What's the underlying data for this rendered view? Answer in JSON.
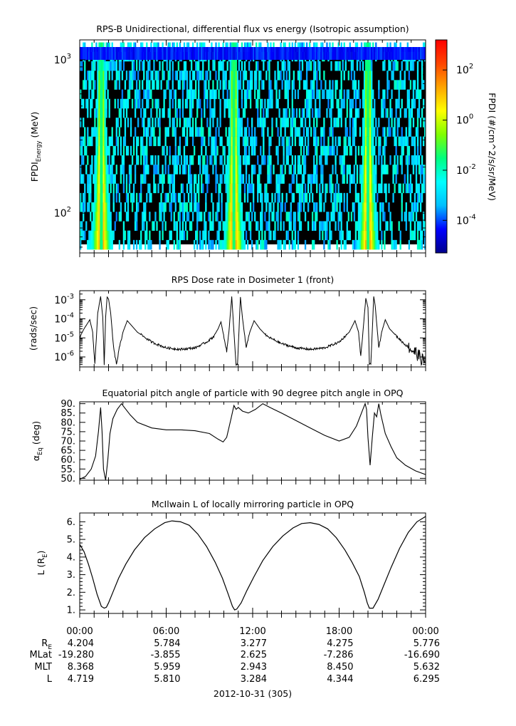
{
  "colors": {
    "axis": "#000000",
    "background_fill": "#000000",
    "colormap": [
      "#00008b",
      "#0000ff",
      "#00bfff",
      "#00ffff",
      "#00ff7f",
      "#7fff00",
      "#ffff00",
      "#ffa500",
      "#ff4500",
      "#ff0000"
    ]
  },
  "chart_data": [
    {
      "type": "heatmap",
      "title": "RPS-B  Unidirectional, differential flux vs energy (Isotropic assumption)",
      "ylabel_main": "FPDI",
      "ylabel_sub": "Energy",
      "ylabel_unit": " (MeV)",
      "yscale": "log",
      "ylim": [
        55,
        1350
      ],
      "y_ticks": [
        {
          "value": 100,
          "base": "10",
          "exp": "2"
        },
        {
          "value": 1000,
          "base": "10",
          "exp": "3"
        }
      ],
      "xlim_hours": [
        0,
        24
      ],
      "colorbar": {
        "label": "FPDI (#/cm^2/s/sr/MeV)",
        "scale": "log",
        "range_exp": [
          -5.3,
          3.2
        ],
        "ticks": [
          {
            "exp": "2",
            "base": "10"
          },
          {
            "exp": "0",
            "base": "10"
          },
          {
            "exp": "-2",
            "base": "10"
          },
          {
            "exp": "-4",
            "base": "10"
          }
        ]
      },
      "belt_passes_hours": [
        1.5,
        10.7,
        20.0
      ]
    },
    {
      "type": "line",
      "title": "RPS  Dose rate in Dosimeter 1 (front)",
      "ylabel": "(rads/sec)",
      "yscale": "log",
      "ylim": [
        3e-07,
        0.003
      ],
      "y_ticks": [
        {
          "value": 1e-06,
          "base": "10",
          "exp": "-6"
        },
        {
          "value": 1e-05,
          "base": "10",
          "exp": "-5"
        },
        {
          "value": 0.0001,
          "base": "10",
          "exp": "-4"
        },
        {
          "value": 0.001,
          "base": "10",
          "exp": "-3"
        }
      ],
      "x_hours": [
        0,
        0.3,
        0.7,
        0.9,
        1.05,
        1.25,
        1.45,
        1.6,
        1.7,
        1.8,
        1.9,
        2.0,
        2.15,
        2.35,
        2.55,
        2.75,
        3.0,
        3.3,
        4.0,
        5.0,
        6.0,
        7.0,
        8.0,
        8.8,
        9.3,
        9.6,
        9.8,
        9.95,
        10.2,
        10.35,
        10.55,
        10.7,
        10.85,
        10.95,
        11.15,
        11.3,
        11.55,
        11.8,
        12.1,
        12.5,
        13.0,
        14.0,
        15.0,
        16.0,
        17.0,
        18.0,
        18.7,
        19.1,
        19.35,
        19.5,
        19.65,
        19.85,
        20.0,
        20.1,
        20.2,
        20.4,
        20.5,
        20.75,
        20.95,
        21.2,
        21.5,
        22.0,
        22.5,
        23.0,
        23.4,
        23.7,
        24.0
      ],
      "values": [
        1.1e-05,
        3e-05,
        9e-05,
        2e-05,
        4e-07,
        0.0002,
        0.0015,
        0.00012,
        4e-07,
        0.00012,
        0.0014,
        0.0011,
        0.0002,
        3e-06,
        4e-07,
        3e-06,
        2e-05,
        8e-05,
        2e-05,
        6e-06,
        3e-06,
        2.5e-06,
        3e-06,
        6e-06,
        1.2e-05,
        3e-05,
        7e-05,
        1.8e-05,
        2e-06,
        2e-05,
        0.0015,
        2e-05,
        4e-07,
        4e-07,
        0.0014,
        0.0001,
        3e-06,
        2e-05,
        8e-05,
        3e-05,
        1.2e-05,
        5e-06,
        3e-06,
        2.5e-06,
        3e-06,
        6e-06,
        2e-05,
        8e-05,
        2e-05,
        1e-06,
        2e-05,
        0.0012,
        0.0004,
        4e-07,
        4e-07,
        0.0015,
        0.0005,
        3e-06,
        2e-05,
        9e-05,
        3e-05,
        1.2e-05,
        5e-06,
        2.5e-06,
        1.5e-06,
        8e-07,
        5e-07
      ],
      "xlim_hours": [
        0,
        24
      ]
    },
    {
      "type": "line",
      "title": "Equatorial pitch angle of particle with 90 degree pitch angle in OPQ",
      "ylabel_main": "α",
      "ylabel_sub": "Eq",
      "ylabel_unit": " (deg)",
      "ylim": [
        49,
        91
      ],
      "y_ticks": [
        "50.",
        "55.",
        "60.",
        "65.",
        "70.",
        "75.",
        "80.",
        "85.",
        "90."
      ],
      "y_tick_values": [
        50,
        55,
        60,
        65,
        70,
        75,
        80,
        85,
        90
      ],
      "x_hours": [
        0,
        0.4,
        0.8,
        1.1,
        1.3,
        1.45,
        1.55,
        1.65,
        1.8,
        1.95,
        2.1,
        2.3,
        2.6,
        2.9,
        3.1,
        3.5,
        4.0,
        5.0,
        6.0,
        7.0,
        8.0,
        9.0,
        9.6,
        9.95,
        10.2,
        10.5,
        10.7,
        10.85,
        11.0,
        11.3,
        11.7,
        12.2,
        12.7,
        13.2,
        14.0,
        15.0,
        16.0,
        17.0,
        18.0,
        18.7,
        19.2,
        19.6,
        19.8,
        19.9,
        20.0,
        20.15,
        20.3,
        20.45,
        20.6,
        20.75,
        20.9,
        21.2,
        21.6,
        22.0,
        22.6,
        23.3,
        24.0
      ],
      "values": [
        49.5,
        51,
        55,
        62,
        75,
        88,
        75,
        55,
        49,
        60,
        74,
        82,
        87,
        90,
        88,
        84,
        80,
        77,
        76,
        76,
        75.5,
        74,
        71,
        69.5,
        72,
        82,
        89,
        87,
        88,
        86,
        85,
        87,
        90,
        88,
        85,
        81,
        77,
        73,
        70,
        72,
        78,
        86,
        90,
        87,
        72,
        57,
        72,
        85,
        83,
        90,
        84,
        74,
        67,
        61,
        57,
        54,
        52
      ]
    },
    {
      "type": "line",
      "title": "McIlwain L of locally mirroring particle in OPQ",
      "ylabel_main": "L (R",
      "ylabel_sub": "E",
      "ylabel_unit": ")",
      "ylim": [
        0.8,
        6.5
      ],
      "y_ticks": [
        "1.",
        "2.",
        "3.",
        "4.",
        "5.",
        "6."
      ],
      "y_tick_values": [
        1,
        2,
        3,
        4,
        5,
        6
      ],
      "x_hours": [
        0,
        0.3,
        0.6,
        0.9,
        1.2,
        1.5,
        1.7,
        1.85,
        2.0,
        2.3,
        2.7,
        3.2,
        3.8,
        4.5,
        5.2,
        5.9,
        6.4,
        7.0,
        7.6,
        8.2,
        8.8,
        9.4,
        9.9,
        10.3,
        10.6,
        10.75,
        10.9,
        11.2,
        11.6,
        12.1,
        12.7,
        13.4,
        14.1,
        14.8,
        15.4,
        16.0,
        16.6,
        17.2,
        17.8,
        18.4,
        18.9,
        19.4,
        19.75,
        19.95,
        20.1,
        20.35,
        20.7,
        21.1,
        21.6,
        22.2,
        22.8,
        23.4,
        24.0
      ],
      "values": [
        4.72,
        4.3,
        3.6,
        2.8,
        1.9,
        1.2,
        1.1,
        1.15,
        1.4,
        2.0,
        2.8,
        3.6,
        4.4,
        5.1,
        5.6,
        5.95,
        6.05,
        6.0,
        5.8,
        5.3,
        4.6,
        3.7,
        2.8,
        1.9,
        1.2,
        1.0,
        1.05,
        1.4,
        2.1,
        2.9,
        3.8,
        4.6,
        5.2,
        5.65,
        5.9,
        5.95,
        5.85,
        5.6,
        5.1,
        4.4,
        3.7,
        2.9,
        2.0,
        1.4,
        1.1,
        1.1,
        1.6,
        2.4,
        3.4,
        4.5,
        5.4,
        6.0,
        6.3
      ],
      "xlim_hours": [
        0,
        24
      ]
    }
  ],
  "x_axis": {
    "tick_labels": [
      "00:00",
      "06:00",
      "12:00",
      "18:00",
      "00:00"
    ],
    "tick_hours": [
      0,
      6,
      12,
      18,
      24
    ],
    "date_label": "2012-10-31 (305)"
  },
  "ephemeris": {
    "rows": [
      {
        "label_main": "R",
        "label_sub": "E",
        "values": [
          "4.204",
          "5.784",
          "3.277",
          "4.275",
          "5.776"
        ]
      },
      {
        "label_main": "MLat",
        "label_sub": "",
        "values": [
          "-19.280",
          "-3.855",
          "2.625",
          "-7.286",
          "-16.690"
        ]
      },
      {
        "label_main": "MLT",
        "label_sub": "",
        "values": [
          "8.368",
          "5.959",
          "2.943",
          "8.450",
          "5.632"
        ]
      },
      {
        "label_main": "L",
        "label_sub": "",
        "values": [
          "4.719",
          "5.810",
          "3.284",
          "4.344",
          "6.295"
        ]
      }
    ]
  }
}
